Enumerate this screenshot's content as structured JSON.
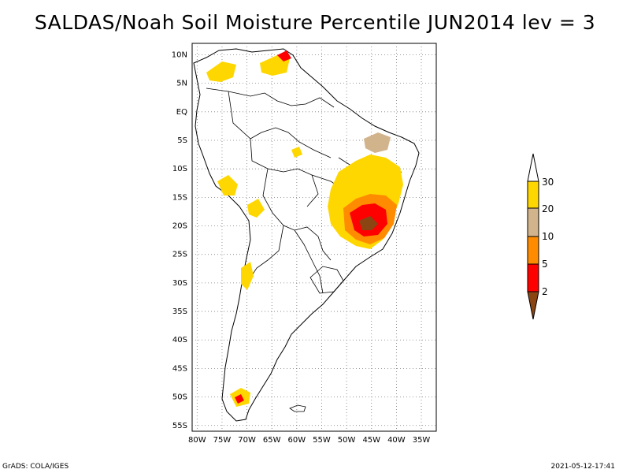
{
  "title": "SALDAS/Noah Soil Moisture Percentile JUN2014 lev = 3",
  "map": {
    "lat_labels": [
      "10N",
      "5N",
      "EQ",
      "5S",
      "10S",
      "15S",
      "20S",
      "25S",
      "30S",
      "35S",
      "40S",
      "45S",
      "50S",
      "55S"
    ],
    "lon_labels": [
      "80W",
      "75W",
      "70W",
      "65W",
      "60W",
      "55W",
      "50W",
      "45W",
      "40W",
      "35W"
    ],
    "grid": true,
    "lon_range": [
      -81,
      -32
    ],
    "lat_range": [
      -56,
      12
    ]
  },
  "legend": {
    "labels": [
      "2",
      "5",
      "10",
      "20",
      "30"
    ],
    "colors": [
      "#8B4513",
      "#FF0000",
      "#FF8C00",
      "#D2B48C",
      "#FFD700",
      "#FFFFFF"
    ]
  },
  "footer": {
    "left": "GrADS: COLA/IGES",
    "right": "2021-05-12-17:41"
  }
}
